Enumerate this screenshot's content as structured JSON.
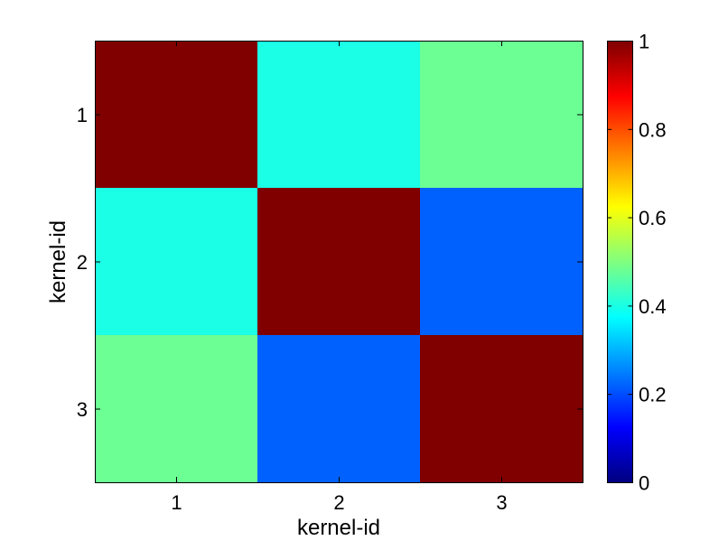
{
  "chart_data": {
    "type": "heatmap",
    "title": "",
    "xlabel": "kernel-id",
    "ylabel": "kernel-id",
    "x_categories": [
      "1",
      "2",
      "3"
    ],
    "y_categories": [
      "1",
      "2",
      "3"
    ],
    "values": [
      [
        1.0,
        0.4,
        0.48
      ],
      [
        0.4,
        1.0,
        0.22
      ],
      [
        0.48,
        0.22,
        1.0
      ]
    ],
    "colorbar": {
      "colormap": "jet",
      "range": [
        0,
        1
      ],
      "ticks": [
        0,
        0.2,
        0.4,
        0.6,
        0.8,
        1
      ],
      "tick_labels": [
        "0",
        "0.2",
        "0.4",
        "0.6",
        "0.8",
        "1"
      ],
      "placement": "right"
    },
    "grid": false
  }
}
